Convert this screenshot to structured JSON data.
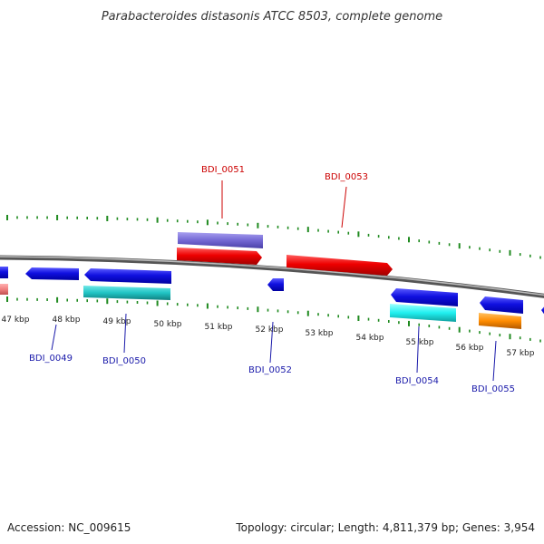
{
  "title": "Parabacteroides distasonis ATCC 8503, complete genome",
  "footer": {
    "accession": "Accession: NC_009615",
    "summary": "Topology: circular; Length: 4,811,379 bp; Genes: 3,954"
  },
  "colors": {
    "backbone": "#7a7a7a",
    "ticks": "#1f8a1f",
    "forward_label": "#cc0000",
    "reverse_label": "#1a1aaa"
  },
  "scale_labels": [
    "47 kbp",
    "48 kbp",
    "49 kbp",
    "50 kbp",
    "51 kbp",
    "52 kbp",
    "53 kbp",
    "54 kbp",
    "55 kbp",
    "56 kbp",
    "57 kbp"
  ],
  "gene_labels": {
    "forward": [
      "BDI_0051",
      "BDI_0053"
    ],
    "reverse": [
      "BDI_0049",
      "BDI_0050",
      "BDI_0052",
      "BDI_0054",
      "BDI_0055"
    ]
  }
}
